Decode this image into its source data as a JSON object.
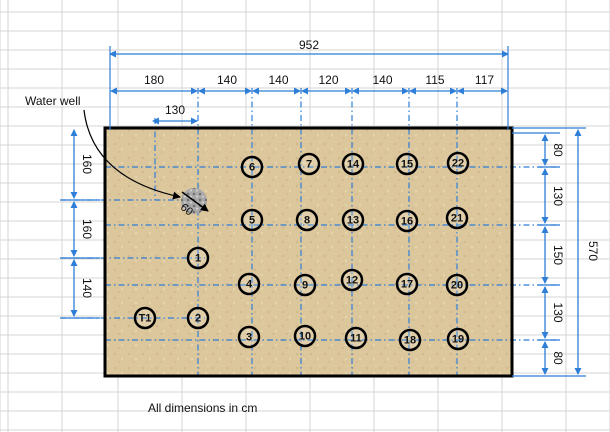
{
  "dimensions": {
    "total_width": "952",
    "top_segments": [
      "180",
      "140",
      "140",
      "120",
      "140",
      "115",
      "117"
    ],
    "well_offset": "130",
    "left_segments": [
      "160",
      "160",
      "140"
    ],
    "right_segments": [
      "80",
      "130",
      "150",
      "130",
      "80"
    ],
    "total_height": "570",
    "well_diameter": "60"
  },
  "labels": {
    "water_well": "Water well",
    "footer_note": "All dimensions in cm"
  },
  "points": [
    {
      "label": "6"
    },
    {
      "label": "7"
    },
    {
      "label": "14"
    },
    {
      "label": "15"
    },
    {
      "label": "22"
    },
    {
      "label": "5"
    },
    {
      "label": "8"
    },
    {
      "label": "13"
    },
    {
      "label": "16"
    },
    {
      "label": "21"
    },
    {
      "label": "1"
    },
    {
      "label": "4"
    },
    {
      "label": "9"
    },
    {
      "label": "12"
    },
    {
      "label": "17"
    },
    {
      "label": "20"
    },
    {
      "label": "T1"
    },
    {
      "label": "2"
    },
    {
      "label": "3"
    },
    {
      "label": "10"
    },
    {
      "label": "11"
    },
    {
      "label": "18"
    },
    {
      "label": "19"
    }
  ],
  "colors": {
    "dimension_line": "#2f7ed8",
    "plot_fill": "#d9c49a",
    "plot_border": "#000000",
    "grid": "#d4d4d4",
    "well": "#9a9a9a"
  }
}
